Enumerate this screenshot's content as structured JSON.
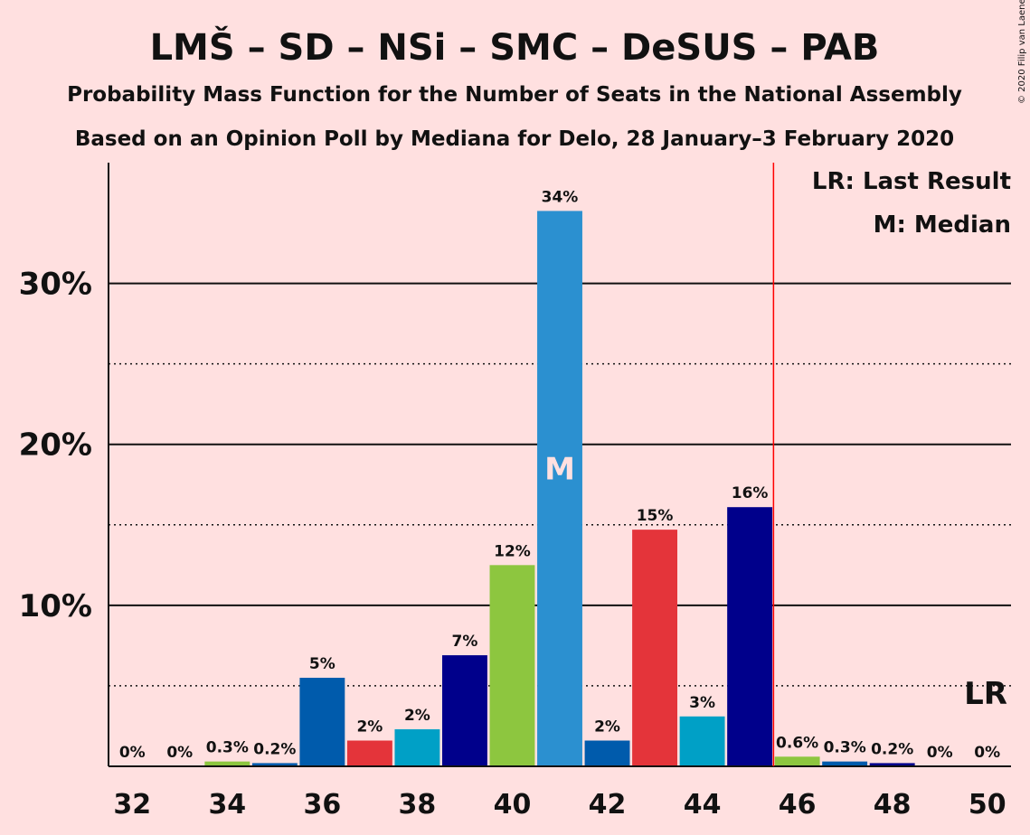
{
  "chart_data": {
    "type": "bar",
    "title": "LMŠ – SD – NSi – SMC – DeSUS – PAB",
    "subtitle_1": "Probability Mass Function for the Number of Seats in the National Assembly",
    "subtitle_2": "Based on an Opinion Poll by Mediana for Delo, 28 January–3 February 2020",
    "copyright": "© 2020 Filip van Laenen",
    "x": [
      32,
      33,
      34,
      35,
      36,
      37,
      38,
      39,
      40,
      41,
      42,
      43,
      44,
      45,
      46,
      47,
      48,
      49,
      50
    ],
    "values": [
      0,
      0,
      0.3,
      0.2,
      5.5,
      1.6,
      2.3,
      6.9,
      12.5,
      34.5,
      1.6,
      14.7,
      3.1,
      16.1,
      0.6,
      0.3,
      0.2,
      0,
      0
    ],
    "value_labels": [
      "0%",
      "0%",
      "0.3%",
      "0.2%",
      "5%",
      "2%",
      "2%",
      "7%",
      "12%",
      "34%",
      "2%",
      "15%",
      "3%",
      "16%",
      "0.6%",
      "0.3%",
      "0.2%",
      "0%",
      "0%"
    ],
    "bar_colors": [
      "#8DC63F",
      "#005BAC",
      "#8DC63F",
      "#005BAC",
      "#005BAC",
      "#E4343A",
      "#00A0C6",
      "#00008B",
      "#8DC63F",
      "#2B90D0",
      "#005BAC",
      "#E4343A",
      "#00A0C6",
      "#00008B",
      "#8DC63F",
      "#005BAC",
      "#00008B",
      "#005BAC",
      "#8DC63F"
    ],
    "x_ticks": [
      "32",
      "34",
      "36",
      "38",
      "40",
      "42",
      "44",
      "46",
      "48",
      "50"
    ],
    "y_ticks": [
      {
        "value": 10,
        "label": "10%"
      },
      {
        "value": 20,
        "label": "20%"
      },
      {
        "value": 30,
        "label": "30%"
      }
    ],
    "y_minor_gridlines": [
      5,
      15,
      25
    ],
    "ylim": [
      0,
      37.5
    ],
    "xlim": [
      31.5,
      50.5
    ],
    "median_seat": 41,
    "median_mark": "M",
    "last_result_seat": 50,
    "last_result_mark": "LR",
    "majority_line_x": 45.5,
    "majority_line_color": "#FF0000",
    "legend": [
      "LR: Last Result",
      "M: Median"
    ],
    "legend_position": "top-right",
    "background_color": "#FFE0E0"
  }
}
